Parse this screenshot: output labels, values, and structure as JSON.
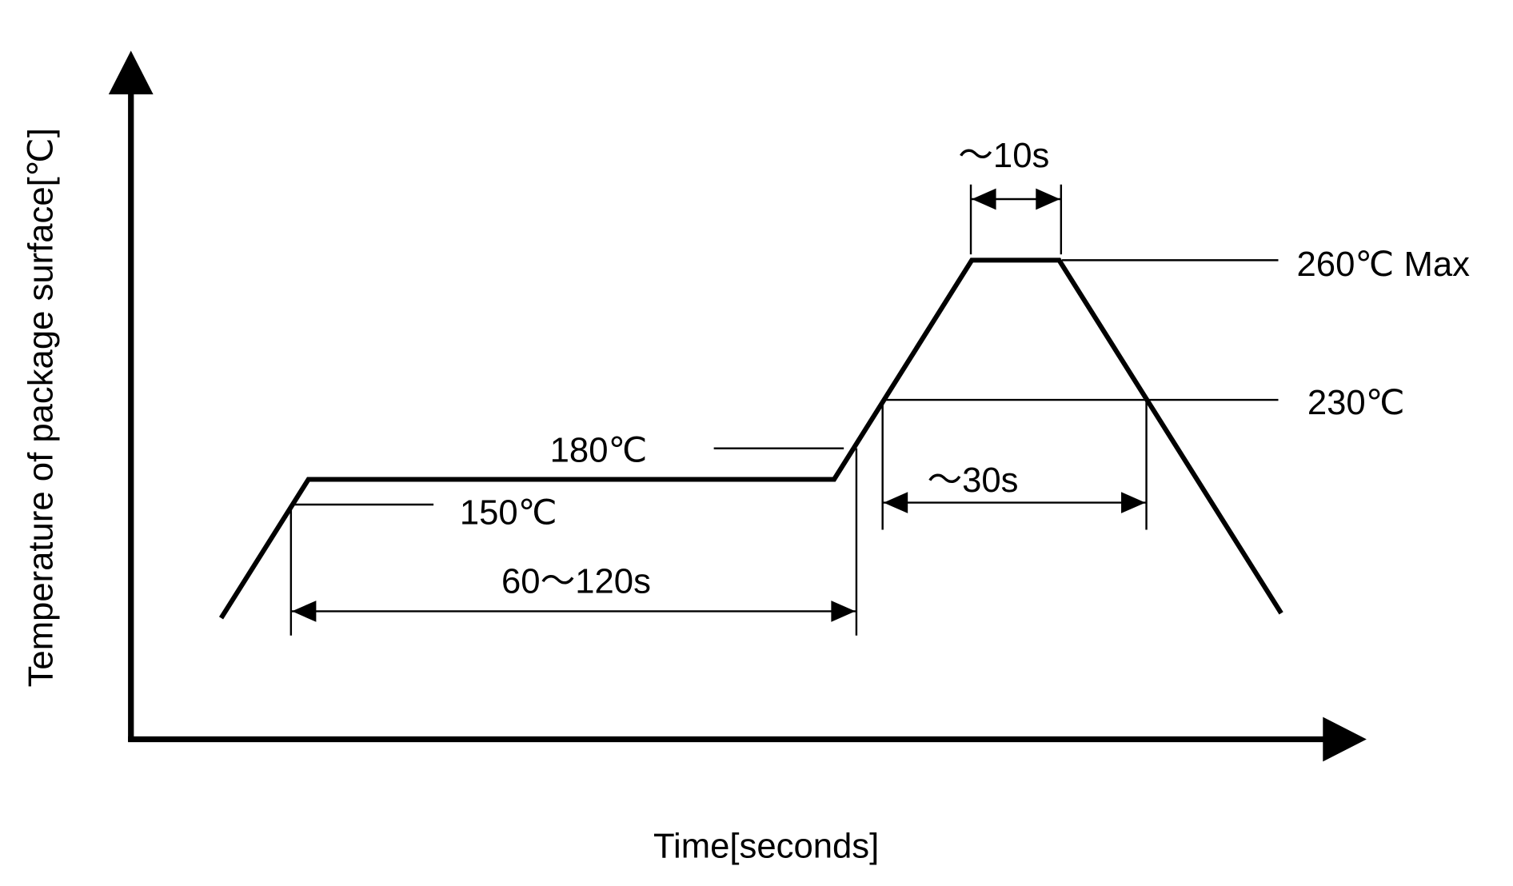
{
  "diagram": {
    "y_axis_label": "Temperature  of package surface[℃]",
    "x_axis_label": "Time[seconds]",
    "levels": {
      "peak": "260℃ Max",
      "reflow": "230℃",
      "preheat_high": "180℃",
      "preheat_low": "150℃"
    },
    "durations": {
      "peak": "～10s",
      "reflow": "～30s",
      "preheat": "60～120s"
    },
    "line_color": "#000000"
  }
}
